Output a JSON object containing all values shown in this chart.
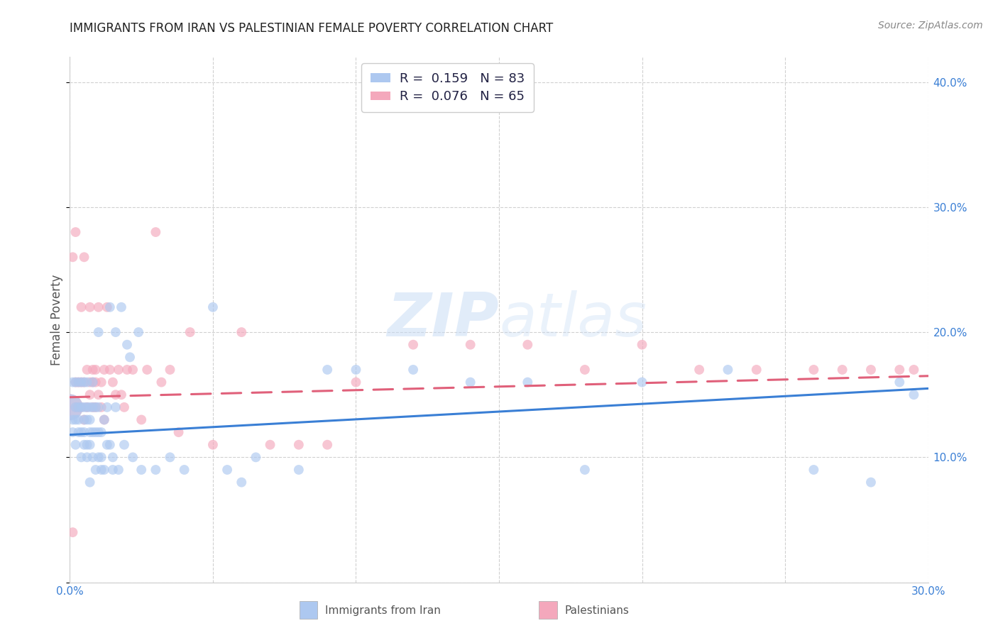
{
  "title": "IMMIGRANTS FROM IRAN VS PALESTINIAN FEMALE POVERTY CORRELATION CHART",
  "source": "Source: ZipAtlas.com",
  "ylabel": "Female Poverty",
  "xlim": [
    0.0,
    0.3
  ],
  "ylim": [
    0.0,
    0.42
  ],
  "iran_R": 0.159,
  "iran_N": 83,
  "pal_R": 0.076,
  "pal_N": 65,
  "iran_color": "#adc8f0",
  "pal_color": "#f4a8bc",
  "iran_line_color": "#3a7fd5",
  "pal_line_color": "#e0607a",
  "watermark_zip": "ZIP",
  "watermark_atlas": "atlas",
  "iran_x": [
    0.0,
    0.001,
    0.001,
    0.001,
    0.002,
    0.002,
    0.002,
    0.002,
    0.003,
    0.003,
    0.003,
    0.003,
    0.004,
    0.004,
    0.004,
    0.004,
    0.005,
    0.005,
    0.005,
    0.005,
    0.005,
    0.006,
    0.006,
    0.006,
    0.006,
    0.006,
    0.007,
    0.007,
    0.007,
    0.007,
    0.007,
    0.008,
    0.008,
    0.008,
    0.008,
    0.009,
    0.009,
    0.009,
    0.01,
    0.01,
    0.01,
    0.01,
    0.011,
    0.011,
    0.011,
    0.012,
    0.012,
    0.013,
    0.013,
    0.014,
    0.014,
    0.015,
    0.015,
    0.016,
    0.016,
    0.017,
    0.018,
    0.019,
    0.02,
    0.021,
    0.022,
    0.024,
    0.025,
    0.03,
    0.035,
    0.04,
    0.05,
    0.055,
    0.06,
    0.065,
    0.08,
    0.09,
    0.1,
    0.12,
    0.14,
    0.16,
    0.18,
    0.2,
    0.23,
    0.26,
    0.28,
    0.29,
    0.295
  ],
  "iran_y": [
    0.14,
    0.16,
    0.13,
    0.12,
    0.13,
    0.14,
    0.16,
    0.11,
    0.13,
    0.16,
    0.12,
    0.14,
    0.12,
    0.14,
    0.16,
    0.1,
    0.11,
    0.13,
    0.14,
    0.16,
    0.12,
    0.1,
    0.11,
    0.13,
    0.14,
    0.16,
    0.11,
    0.12,
    0.13,
    0.14,
    0.08,
    0.12,
    0.14,
    0.1,
    0.16,
    0.09,
    0.12,
    0.14,
    0.1,
    0.12,
    0.14,
    0.2,
    0.09,
    0.12,
    0.1,
    0.09,
    0.13,
    0.11,
    0.14,
    0.11,
    0.22,
    0.1,
    0.09,
    0.2,
    0.14,
    0.09,
    0.22,
    0.11,
    0.19,
    0.18,
    0.1,
    0.2,
    0.09,
    0.09,
    0.1,
    0.09,
    0.22,
    0.09,
    0.08,
    0.1,
    0.09,
    0.17,
    0.17,
    0.17,
    0.16,
    0.16,
    0.09,
    0.16,
    0.17,
    0.09,
    0.08,
    0.16,
    0.15
  ],
  "iran_size": [
    700,
    100,
    100,
    100,
    100,
    100,
    100,
    100,
    100,
    100,
    100,
    100,
    100,
    100,
    100,
    100,
    100,
    100,
    100,
    100,
    100,
    100,
    100,
    100,
    100,
    100,
    100,
    100,
    100,
    100,
    100,
    100,
    100,
    100,
    100,
    100,
    100,
    100,
    100,
    100,
    100,
    100,
    100,
    100,
    100,
    100,
    100,
    100,
    100,
    100,
    100,
    100,
    100,
    100,
    100,
    100,
    100,
    100,
    100,
    100,
    100,
    100,
    100,
    100,
    100,
    100,
    100,
    100,
    100,
    100,
    100,
    100,
    100,
    100,
    100,
    100,
    100,
    100,
    100,
    100,
    100,
    100,
    100
  ],
  "pal_x": [
    0.0,
    0.001,
    0.001,
    0.002,
    0.002,
    0.002,
    0.003,
    0.003,
    0.004,
    0.004,
    0.004,
    0.005,
    0.005,
    0.005,
    0.006,
    0.006,
    0.007,
    0.007,
    0.007,
    0.008,
    0.008,
    0.008,
    0.009,
    0.009,
    0.009,
    0.01,
    0.01,
    0.011,
    0.011,
    0.012,
    0.012,
    0.013,
    0.014,
    0.015,
    0.016,
    0.017,
    0.018,
    0.019,
    0.02,
    0.022,
    0.025,
    0.027,
    0.03,
    0.032,
    0.035,
    0.038,
    0.042,
    0.05,
    0.06,
    0.07,
    0.08,
    0.09,
    0.1,
    0.12,
    0.14,
    0.16,
    0.18,
    0.2,
    0.22,
    0.24,
    0.26,
    0.27,
    0.28,
    0.29,
    0.295
  ],
  "pal_y": [
    0.14,
    0.26,
    0.04,
    0.14,
    0.16,
    0.28,
    0.14,
    0.16,
    0.22,
    0.16,
    0.14,
    0.26,
    0.13,
    0.16,
    0.17,
    0.14,
    0.16,
    0.22,
    0.15,
    0.17,
    0.14,
    0.16,
    0.14,
    0.16,
    0.17,
    0.15,
    0.22,
    0.14,
    0.16,
    0.13,
    0.17,
    0.22,
    0.17,
    0.16,
    0.15,
    0.17,
    0.15,
    0.14,
    0.17,
    0.17,
    0.13,
    0.17,
    0.28,
    0.16,
    0.17,
    0.12,
    0.2,
    0.11,
    0.2,
    0.11,
    0.11,
    0.11,
    0.16,
    0.19,
    0.19,
    0.19,
    0.17,
    0.19,
    0.17,
    0.17,
    0.17,
    0.17,
    0.17,
    0.17,
    0.17
  ],
  "pal_size": [
    700,
    100,
    100,
    100,
    100,
    100,
    100,
    100,
    100,
    100,
    100,
    100,
    100,
    100,
    100,
    100,
    100,
    100,
    100,
    100,
    100,
    100,
    100,
    100,
    100,
    100,
    100,
    100,
    100,
    100,
    100,
    100,
    100,
    100,
    100,
    100,
    100,
    100,
    100,
    100,
    100,
    100,
    100,
    100,
    100,
    100,
    100,
    100,
    100,
    100,
    100,
    100,
    100,
    100,
    100,
    100,
    100,
    100,
    100,
    100,
    100,
    100,
    100,
    100,
    100
  ],
  "iran_line_x0": 0.0,
  "iran_line_x1": 0.3,
  "iran_line_y0": 0.118,
  "iran_line_y1": 0.155,
  "pal_line_x0": 0.0,
  "pal_line_x1": 0.3,
  "pal_line_y0": 0.148,
  "pal_line_y1": 0.165,
  "grid_color": "#d0d0d0",
  "legend_label_color": "#222244",
  "legend_value_color": "#3a7fd5",
  "bottom_legend_iran": "Immigrants from Iran",
  "bottom_legend_pal": "Palestinians"
}
